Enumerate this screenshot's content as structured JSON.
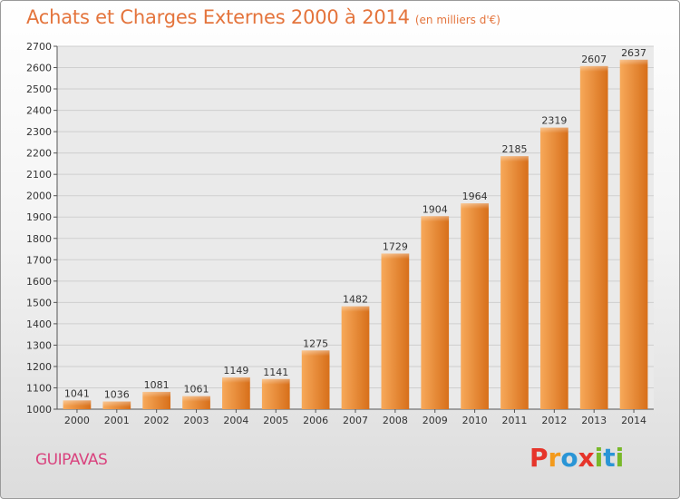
{
  "header": {
    "title": "Achats et Charges Externes 2000 à 2014",
    "unit": "(en milliers d'€)"
  },
  "footer": {
    "commune": "GUIPAVAS",
    "logo_letters": [
      "P",
      "r",
      "o",
      "x",
      "i",
      "t",
      "i"
    ],
    "logo_colors": [
      "#e6342a",
      "#f39a1c",
      "#2a95d6",
      "#e6342a",
      "#79b829",
      "#2a95d6",
      "#79b829"
    ]
  },
  "colors": {
    "bar_light": "#f7a95a",
    "bar_dark": "#d76f1a",
    "title": "#e4743c",
    "commune": "#d9437e"
  },
  "chart_data": {
    "type": "bar",
    "title": "Achats et Charges Externes 2000 à 2014",
    "categories": [
      "2000",
      "2001",
      "2002",
      "2003",
      "2004",
      "2005",
      "2006",
      "2007",
      "2008",
      "2009",
      "2010",
      "2011",
      "2012",
      "2013",
      "2014"
    ],
    "values": [
      1041,
      1036,
      1081,
      1061,
      1149,
      1141,
      1275,
      1482,
      1729,
      1904,
      1964,
      2185,
      2319,
      2607,
      2637
    ],
    "ylim": [
      1000,
      2700
    ],
    "yticks": [
      1000,
      1100,
      1200,
      1300,
      1400,
      1500,
      1600,
      1700,
      1800,
      1900,
      2000,
      2100,
      2200,
      2300,
      2400,
      2500,
      2600,
      2700
    ],
    "grid": true,
    "xlabel": "",
    "ylabel": ""
  }
}
